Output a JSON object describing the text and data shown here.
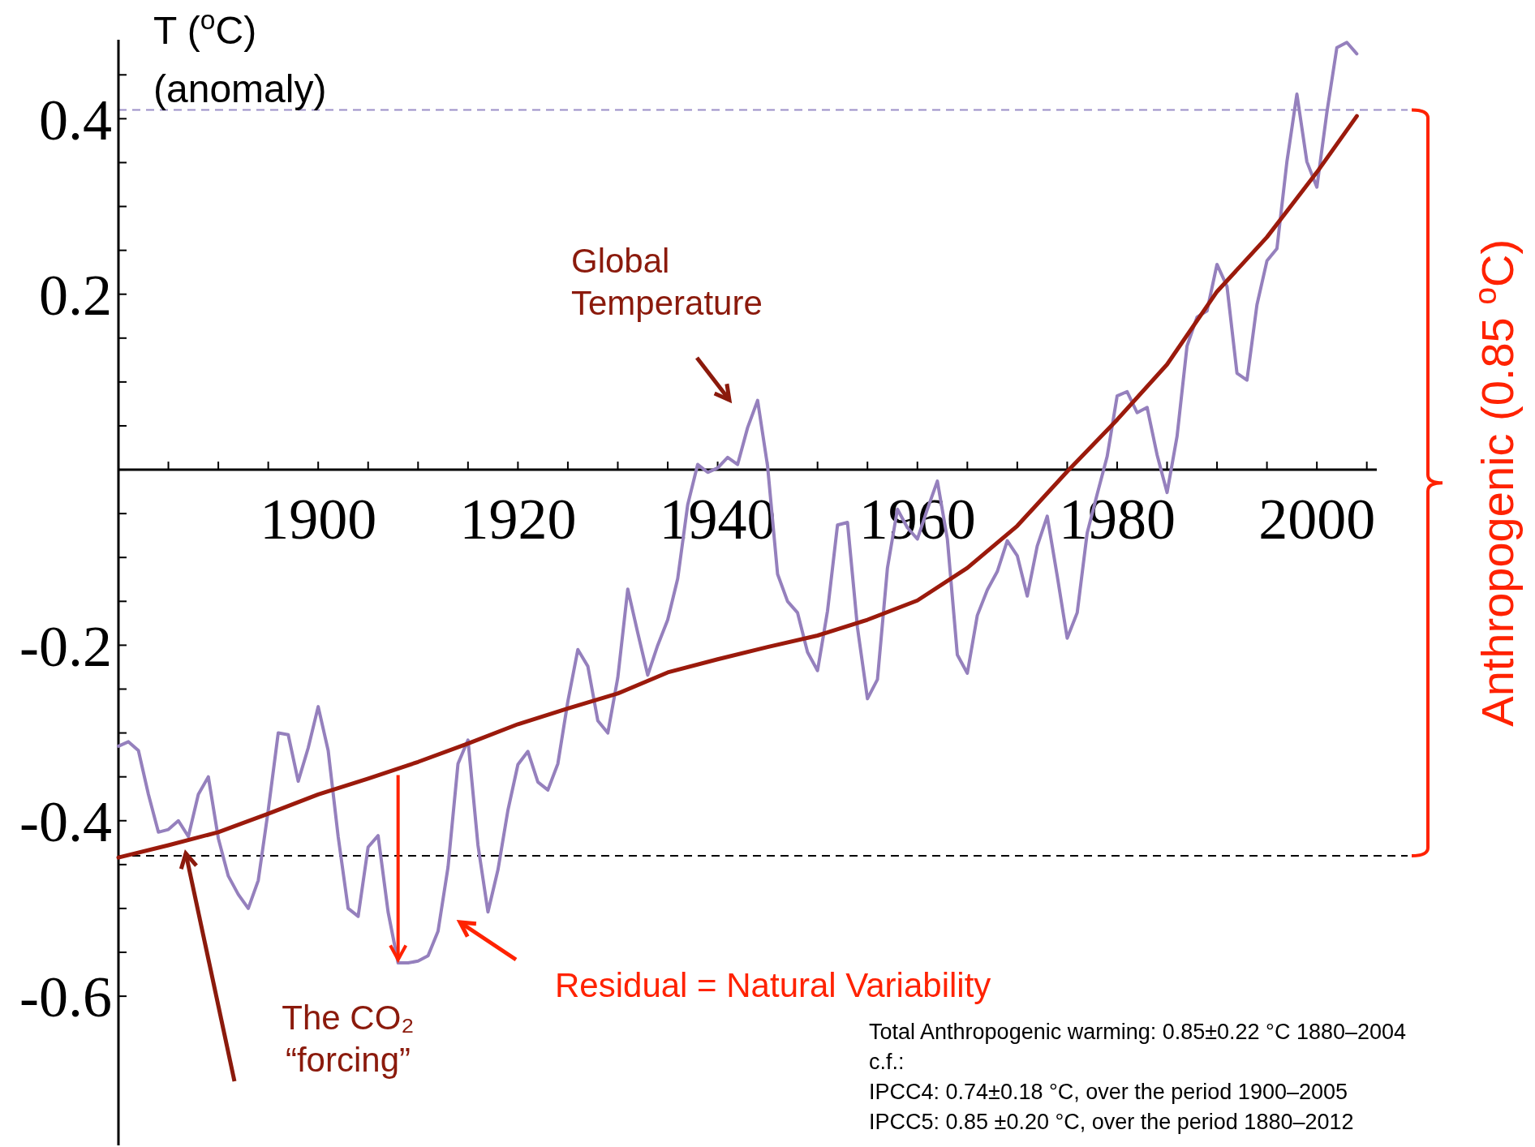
{
  "chart_data": {
    "type": "line",
    "ylabel": "T ($^{o}$C) (anomaly)",
    "xlim": [
      1880,
      2006
    ],
    "ylim": [
      -0.77,
      0.49
    ],
    "xticks": [
      {
        "value": 1885,
        "label": null
      },
      {
        "value": 1890,
        "label": null
      },
      {
        "value": 1895,
        "label": null
      },
      1900,
      {
        "value": 1905,
        "label": null
      },
      {
        "value": 1910,
        "label": null
      },
      {
        "value": 1915,
        "label": null
      },
      1920,
      {
        "value": 1925,
        "label": null
      },
      {
        "value": 1930,
        "label": null
      },
      {
        "value": 1935,
        "label": null
      },
      1940,
      {
        "value": 1945,
        "label": null
      },
      {
        "value": 1950,
        "label": null
      },
      {
        "value": 1955,
        "label": null
      },
      1960,
      {
        "value": 1965,
        "label": null
      },
      {
        "value": 1970,
        "label": null
      },
      {
        "value": 1975,
        "label": null
      },
      1980,
      {
        "value": 1985,
        "label": null
      },
      {
        "value": 1990,
        "label": null
      },
      {
        "value": 1995,
        "label": null
      },
      2000,
      {
        "value": 2005,
        "label": null
      }
    ],
    "yticks": [
      -0.6,
      {
        "value": -0.55,
        "label": null
      },
      {
        "value": -0.5,
        "label": null
      },
      {
        "value": -0.45,
        "label": null
      },
      -0.4,
      {
        "value": -0.35,
        "label": null
      },
      {
        "value": -0.3,
        "label": null
      },
      {
        "value": -0.25,
        "label": null
      },
      -0.2,
      {
        "value": -0.15,
        "label": null
      },
      {
        "value": -0.1,
        "label": null
      },
      {
        "value": -0.05,
        "label": null
      },
      {
        "value": 0,
        "label": null
      },
      {
        "value": 0.05,
        "label": null
      },
      {
        "value": 0.1,
        "label": null
      },
      {
        "value": 0.15,
        "label": null
      },
      0.2,
      {
        "value": 0.25,
        "label": null
      },
      {
        "value": 0.3,
        "label": null
      },
      {
        "value": 0.35,
        "label": null
      },
      0.4,
      {
        "value": 0.45,
        "label": null
      }
    ],
    "grid": false,
    "marker": "none",
    "line_style": "solid",
    "series": [
      {
        "color": "#9580bd",
        "x": [
          1880,
          1881,
          1882,
          1883,
          1884,
          1885,
          1886,
          1887,
          1888,
          1889,
          1890,
          1891,
          1892,
          1893,
          1894,
          1895,
          1896,
          1897,
          1898,
          1899,
          1900,
          1901,
          1902,
          1903,
          1904,
          1905,
          1906,
          1907,
          1908,
          1909,
          1910,
          1911,
          1912,
          1913,
          1914,
          1915,
          1916,
          1917,
          1918,
          1919,
          1920,
          1921,
          1922,
          1923,
          1924,
          1925,
          1926,
          1927,
          1928,
          1929,
          1930,
          1931,
          1932,
          1933,
          1934,
          1935,
          1936,
          1937,
          1938,
          1939,
          1940,
          1941,
          1942,
          1943,
          1944,
          1945,
          1946,
          1947,
          1948,
          1949,
          1950,
          1951,
          1952,
          1953,
          1954,
          1955,
          1956,
          1957,
          1958,
          1959,
          1960,
          1961,
          1962,
          1963,
          1964,
          1965,
          1966,
          1967,
          1968,
          1969,
          1970,
          1971,
          1972,
          1973,
          1974,
          1975,
          1976,
          1977,
          1978,
          1979,
          1980,
          1981,
          1982,
          1983,
          1984,
          1985,
          1986,
          1987,
          1988,
          1989,
          1990,
          1991,
          1992,
          1993,
          1994,
          1995,
          1996,
          1997,
          1998,
          1999,
          2000,
          2001,
          2002,
          2003,
          2004
        ],
        "values": [
          -0.315,
          -0.31,
          -0.32,
          -0.37,
          -0.413,
          -0.41,
          -0.4,
          -0.418,
          -0.37,
          -0.35,
          -0.42,
          -0.463,
          -0.484,
          -0.5,
          -0.468,
          -0.388,
          -0.3,
          -0.302,
          -0.355,
          -0.317,
          -0.27,
          -0.32,
          -0.418,
          -0.5,
          -0.509,
          -0.43,
          -0.417,
          -0.504,
          -0.562,
          -0.562,
          -0.56,
          -0.554,
          -0.526,
          -0.453,
          -0.335,
          -0.308,
          -0.428,
          -0.504,
          -0.456,
          -0.388,
          -0.336,
          -0.321,
          -0.356,
          -0.365,
          -0.335,
          -0.264,
          -0.205,
          -0.224,
          -0.286,
          -0.3,
          -0.237,
          -0.136,
          -0.186,
          -0.234,
          -0.2,
          -0.171,
          -0.124,
          -0.04,
          0.006,
          -0.003,
          0.002,
          0.014,
          0.006,
          0.048,
          0.079,
          0.004,
          -0.119,
          -0.15,
          -0.163,
          -0.208,
          -0.229,
          -0.161,
          -0.063,
          -0.06,
          -0.18,
          -0.261,
          -0.239,
          -0.112,
          -0.045,
          -0.066,
          -0.079,
          -0.045,
          -0.013,
          -0.079,
          -0.211,
          -0.232,
          -0.166,
          -0.137,
          -0.116,
          -0.081,
          -0.098,
          -0.144,
          -0.087,
          -0.053,
          -0.121,
          -0.192,
          -0.163,
          -0.072,
          -0.028,
          0.015,
          0.084,
          0.089,
          0.065,
          0.071,
          0.017,
          -0.026,
          0.038,
          0.141,
          0.174,
          0.181,
          0.234,
          0.209,
          0.11,
          0.102,
          0.188,
          0.238,
          0.252,
          0.351,
          0.428,
          0.351,
          0.322,
          0.407,
          0.481,
          0.487,
          0.474
        ]
      },
      {
        "color": "#9b1a0c",
        "x": [
          1880,
          1885,
          1890,
          1895,
          1900,
          1905,
          1910,
          1915,
          1920,
          1925,
          1930,
          1935,
          1940,
          1945,
          1950,
          1955,
          1960,
          1965,
          1970,
          1975,
          1980,
          1985,
          1990,
          1995,
          2000,
          2004
        ],
        "values": [
          -0.442,
          -0.428,
          -0.413,
          -0.392,
          -0.37,
          -0.352,
          -0.333,
          -0.312,
          -0.29,
          -0.272,
          -0.255,
          -0.231,
          -0.216,
          -0.202,
          -0.189,
          -0.171,
          -0.149,
          -0.112,
          -0.064,
          -0.002,
          0.057,
          0.12,
          0.203,
          0.265,
          0.339,
          0.403
        ]
      }
    ],
    "ref_lines": [
      {
        "axis": "y",
        "value": 0.41,
        "color": "#9c8fc8",
        "line_style": "dashed"
      },
      {
        "axis": "y",
        "value": -0.44,
        "color": "#000000",
        "line_style": "dashed"
      }
    ],
    "annotations": [
      "Global Temperature",
      "The CO₂ “forcing”",
      "Residual = Natural Variability",
      "Anthropogenic (0.85 $^{o}$C)",
      "Total Anthropogenic warming: 0.85±0.22 °C 1880–2004",
      "c.f.:",
      "IPCC4: 0.74±0.18 °C, over the period 1900–2005",
      "IPCC5: 0.85 ±0.20 °C, over the period 1880–2012"
    ]
  }
}
